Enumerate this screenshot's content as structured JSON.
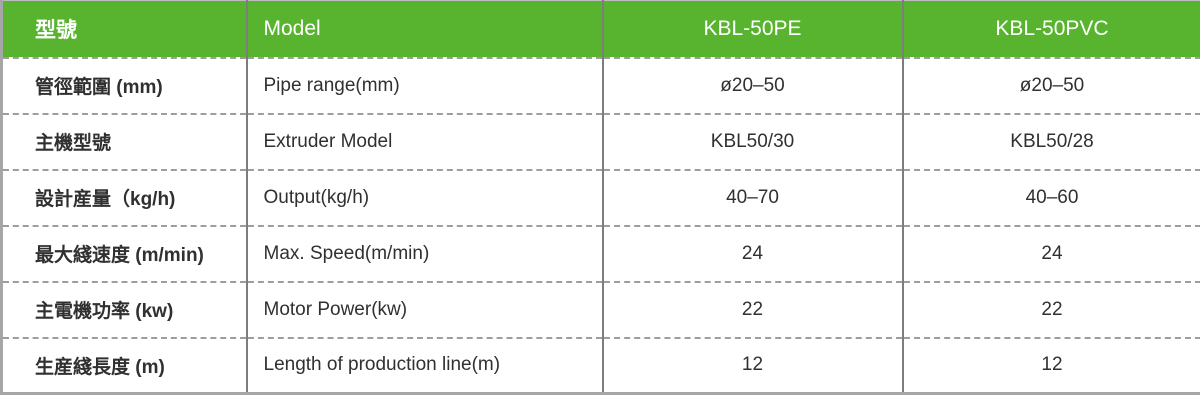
{
  "table": {
    "header": {
      "model_zh": "型號",
      "model_en": "Model",
      "col_pe": "KBL-50PE",
      "col_pvc": "KBL-50PVC"
    },
    "rows": [
      {
        "zh": "管徑範圍 (mm)",
        "en": "Pipe range(mm)",
        "pe": "ø20–50",
        "pvc": "ø20–50"
      },
      {
        "zh": "主機型號",
        "en": "Extruder Model",
        "pe": "KBL50/30",
        "pvc": "KBL50/28"
      },
      {
        "zh": "設計産量（kg/h)",
        "en": "Output(kg/h)",
        "pe": "40–70",
        "pvc": "40–60"
      },
      {
        "zh": "最大綫速度 (m/min)",
        "en": "Max. Speed(m/min)",
        "pe": "24",
        "pvc": "24"
      },
      {
        "zh": "主電機功率 (kw)",
        "en": "Motor Power(kw)",
        "pe": "22",
        "pvc": "22"
      },
      {
        "zh": "生産綫長度 (m)",
        "en": "Length of production line(m)",
        "pe": "12",
        "pvc": "12"
      }
    ],
    "colors": {
      "header_bg": "#58b42f",
      "header_text": "#ffffff",
      "body_text": "#303030",
      "divider": "#7d7d7d",
      "dashed_line": "#9d9d9d",
      "outer_border": "#a6a6a6"
    }
  }
}
